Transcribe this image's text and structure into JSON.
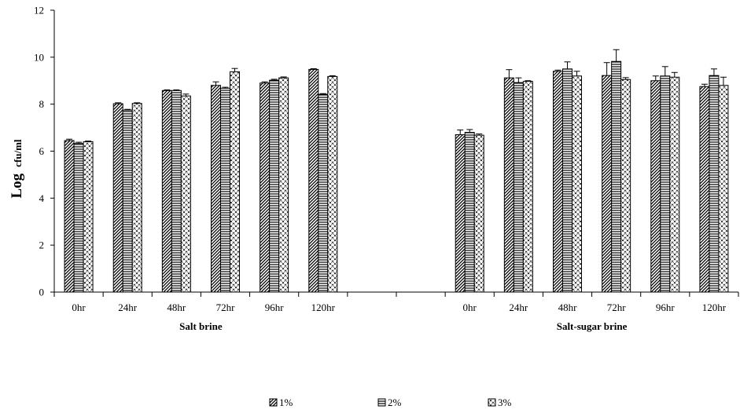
{
  "chart_data": {
    "type": "bar",
    "ylabel": {
      "main": "Log",
      "sub": "cfu/ml"
    },
    "xlabel": "",
    "ylim": [
      0,
      12
    ],
    "yticks": [
      0,
      2,
      4,
      6,
      8,
      10,
      12
    ],
    "grid": false,
    "legend_position": "bottom",
    "categories": [
      "0hr",
      "24hr",
      "48hr",
      "72hr",
      "96hr",
      "120hr"
    ],
    "groups": [
      {
        "label": "Salt brine",
        "series": [
          {
            "name": "1%",
            "values": [
              6.45,
              8.02,
              8.58,
              8.8,
              8.9,
              9.48
            ],
            "errors": [
              0.06,
              0.04,
              0.03,
              0.15,
              0.05,
              0.03
            ]
          },
          {
            "name": "2%",
            "values": [
              6.33,
              7.75,
              8.58,
              8.68,
              9.02,
              8.42
            ],
            "errors": [
              0.05,
              0.03,
              0.03,
              0.04,
              0.04,
              0.03
            ]
          },
          {
            "name": "3%",
            "values": [
              6.4,
              8.03,
              8.35,
              9.38,
              9.12,
              9.18
            ],
            "errors": [
              0.03,
              0.03,
              0.08,
              0.14,
              0.04,
              0.03
            ]
          }
        ]
      },
      {
        "label": "Salt-sugar brine",
        "series": [
          {
            "name": "1%",
            "values": [
              6.7,
              9.12,
              9.4,
              9.22,
              9.0,
              8.75
            ],
            "errors": [
              0.2,
              0.35,
              0.05,
              0.55,
              0.2,
              0.1
            ]
          },
          {
            "name": "2%",
            "values": [
              6.8,
              8.92,
              9.5,
              9.82,
              9.2,
              9.22
            ],
            "errors": [
              0.12,
              0.2,
              0.3,
              0.5,
              0.4,
              0.28
            ]
          },
          {
            "name": "3%",
            "values": [
              6.68,
              8.97,
              9.2,
              9.05,
              9.15,
              8.8
            ],
            "errors": [
              0.05,
              0.03,
              0.2,
              0.08,
              0.2,
              0.35
            ]
          }
        ]
      }
    ],
    "patterns": [
      "diagonal",
      "horizontal",
      "crosshatch"
    ]
  }
}
